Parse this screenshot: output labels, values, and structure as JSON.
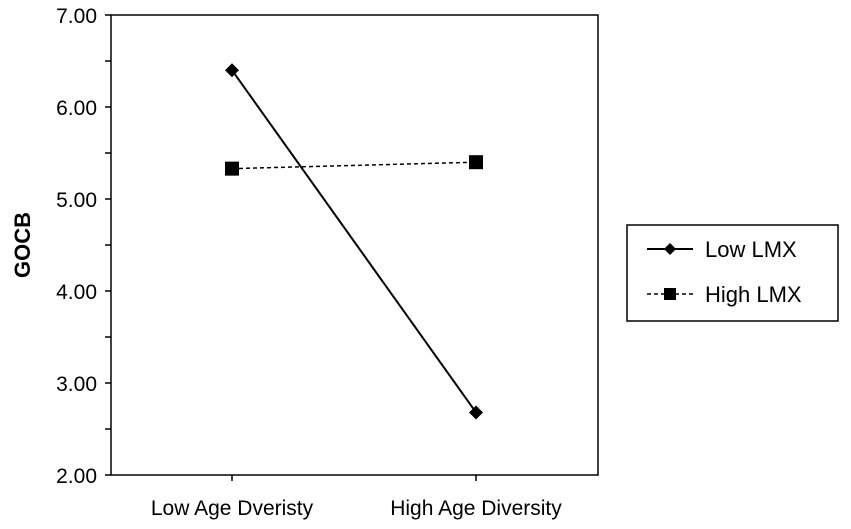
{
  "chart_data": {
    "type": "line",
    "categories": [
      "Low Age Dveristy",
      "High Age Diversity"
    ],
    "ylabel": "GOCB",
    "xlabel": "",
    "ylim": [
      2.0,
      7.0
    ],
    "yticks": [
      "2.00",
      "3.00",
      "4.00",
      "5.00",
      "6.00",
      "7.00"
    ],
    "grid": false,
    "legend_position": "right",
    "series": [
      {
        "name": "Low LMX",
        "values": [
          6.4,
          2.68
        ],
        "marker": "diamond",
        "line": "solid",
        "color": "#000000"
      },
      {
        "name": "High LMX",
        "values": [
          5.33,
          5.4
        ],
        "marker": "square",
        "line": "dashed",
        "color": "#000000"
      }
    ]
  }
}
